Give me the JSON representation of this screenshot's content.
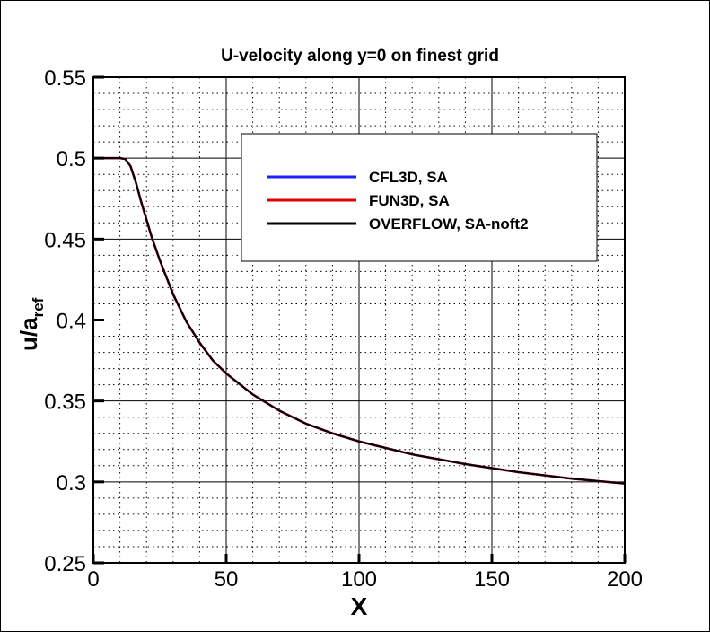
{
  "chart_data": {
    "type": "line",
    "title": "U-velocity along y=0 on finest grid",
    "xlabel": "X",
    "ylabel_main": "u/a",
    "ylabel_sub": "ref",
    "xlim": [
      0,
      200
    ],
    "ylim": [
      0.25,
      0.55
    ],
    "xticks": [
      "0",
      "50",
      "100",
      "150",
      "200"
    ],
    "yticks": [
      "0.25",
      "0.3",
      "0.35",
      "0.4",
      "0.45",
      "0.5",
      "0.55"
    ],
    "grid": true,
    "legend_placement": "top-right",
    "x": [
      0,
      10,
      12,
      14,
      16,
      18,
      20,
      22,
      25,
      30,
      35,
      40,
      45,
      50,
      60,
      70,
      80,
      90,
      100,
      120,
      140,
      160,
      180,
      200
    ],
    "series": [
      {
        "name": "CFL3D, SA",
        "color": "#2020ff",
        "values": [
          0.5,
          0.5,
          0.4995,
          0.495,
          0.485,
          0.473,
          0.462,
          0.451,
          0.437,
          0.416,
          0.399,
          0.386,
          0.375,
          0.367,
          0.354,
          0.344,
          0.336,
          0.33,
          0.325,
          0.317,
          0.311,
          0.306,
          0.302,
          0.299
        ]
      },
      {
        "name": "FUN3D, SA",
        "color": "#e00000",
        "values": [
          0.5,
          0.5,
          0.4995,
          0.495,
          0.485,
          0.473,
          0.462,
          0.451,
          0.437,
          0.416,
          0.399,
          0.386,
          0.375,
          0.367,
          0.354,
          0.344,
          0.336,
          0.33,
          0.325,
          0.317,
          0.311,
          0.306,
          0.302,
          0.299
        ]
      },
      {
        "name": "OVERFLOW, SA-noft2",
        "color": "#000000",
        "values": [
          0.5,
          0.5,
          0.4995,
          0.495,
          0.485,
          0.473,
          0.462,
          0.451,
          0.437,
          0.416,
          0.399,
          0.386,
          0.375,
          0.367,
          0.354,
          0.344,
          0.336,
          0.33,
          0.325,
          0.317,
          0.311,
          0.306,
          0.302,
          0.299
        ]
      }
    ]
  }
}
